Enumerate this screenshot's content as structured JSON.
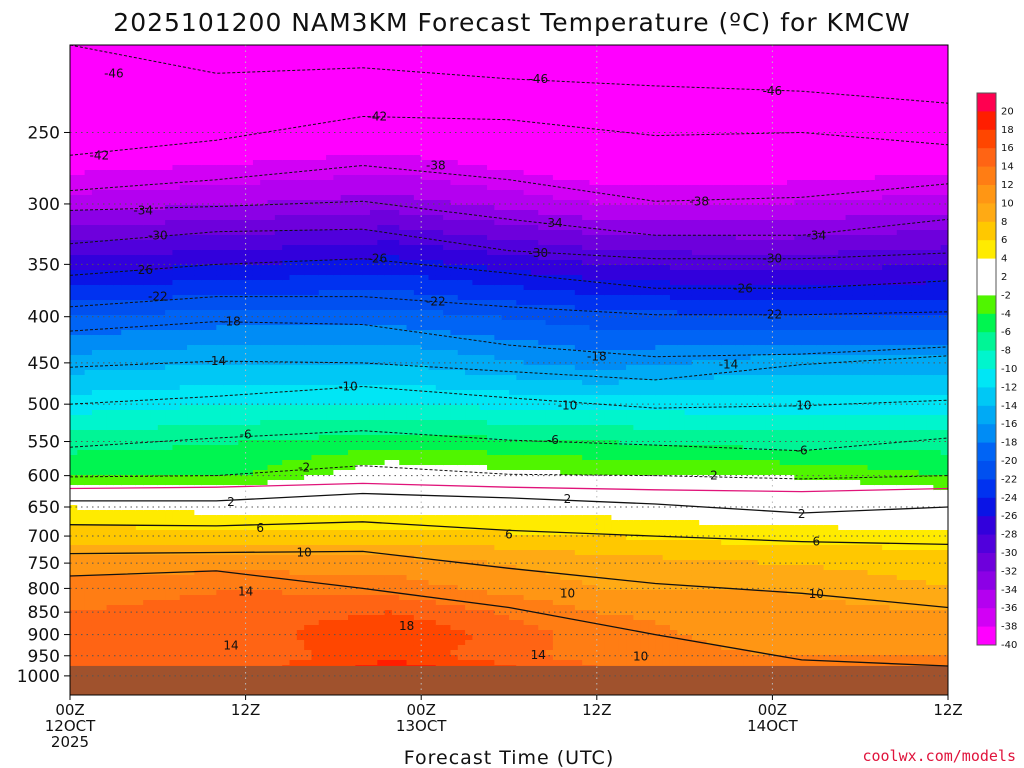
{
  "chart_data": {
    "type": "heatmap",
    "title": "2025101200 NAM3KM Forecast Temperature (ºC) for KMCW",
    "xlabel": "Forecast Time (UTC)",
    "credit": "coolwx.com/models",
    "x_ticks": [
      {
        "hour": 0,
        "lines": [
          "00Z",
          "12OCT",
          "2025"
        ]
      },
      {
        "hour": 12,
        "lines": [
          "12Z"
        ]
      },
      {
        "hour": 24,
        "lines": [
          "00Z",
          "13OCT"
        ]
      },
      {
        "hour": 36,
        "lines": [
          "12Z"
        ]
      },
      {
        "hour": 48,
        "lines": [
          "00Z",
          "14OCT"
        ]
      },
      {
        "hour": 60,
        "lines": [
          "12Z"
        ]
      }
    ],
    "xlim": [
      0,
      60
    ],
    "ylim": [
      1050,
      200
    ],
    "y_ticks": [
      250,
      300,
      350,
      400,
      450,
      500,
      550,
      600,
      650,
      700,
      750,
      800,
      850,
      900,
      950,
      1000
    ],
    "ground_level_hpa": 975,
    "colorbar_labels": [
      "20",
      "18",
      "16",
      "14",
      "12",
      "10",
      "8",
      "6",
      "4",
      "2",
      "-2",
      "-4",
      "-6",
      "-8",
      "-10",
      "-12",
      "-14",
      "-16",
      "-18",
      "-20",
      "-22",
      "-24",
      "-26",
      "-28",
      "-30",
      "-32",
      "-34",
      "-36",
      "-38",
      "-40"
    ],
    "colorbar_colors": [
      "#ff0050",
      "#ff1e00",
      "#ff4600",
      "#ff6414",
      "#ff7d14",
      "#ff9614",
      "#ffaa14",
      "#ffc800",
      "#ffeb00",
      "#ffffff",
      "#ffffff",
      "#50f500",
      "#00f550",
      "#00f596",
      "#00f5cd",
      "#00e6f5",
      "#00c8f5",
      "#00aaf5",
      "#008cf5",
      "#0064f5",
      "#0050f0",
      "#0032f0",
      "#0a14e6",
      "#3200dc",
      "#5000dc",
      "#6e00dc",
      "#8c00e6",
      "#b400f0",
      "#d200f5",
      "#ff00ff"
    ],
    "temperature_profiles": [
      {
        "hour": 0,
        "levels": [
          {
            "p": 975,
            "t": 16
          },
          {
            "p": 950,
            "t": 15
          },
          {
            "p": 900,
            "t": 14
          },
          {
            "p": 850,
            "t": 14
          },
          {
            "p": 800,
            "t": 13
          },
          {
            "p": 750,
            "t": 11
          },
          {
            "p": 700,
            "t": 7
          },
          {
            "p": 650,
            "t": 4
          },
          {
            "p": 600,
            "t": -4
          },
          {
            "p": 550,
            "t": -7
          },
          {
            "p": 500,
            "t": -11
          },
          {
            "p": 450,
            "t": -15
          },
          {
            "p": 400,
            "t": -20
          },
          {
            "p": 350,
            "t": -27
          },
          {
            "p": 300,
            "t": -35
          },
          {
            "p": 250,
            "t": -42
          },
          {
            "p": 200,
            "t": -48
          }
        ]
      },
      {
        "hour": 12,
        "levels": [
          {
            "p": 975,
            "t": 15
          },
          {
            "p": 950,
            "t": 15
          },
          {
            "p": 900,
            "t": 15
          },
          {
            "p": 850,
            "t": 15
          },
          {
            "p": 800,
            "t": 14
          },
          {
            "p": 750,
            "t": 11
          },
          {
            "p": 700,
            "t": 7
          },
          {
            "p": 650,
            "t": 3
          },
          {
            "p": 600,
            "t": -4
          },
          {
            "p": 550,
            "t": -6
          },
          {
            "p": 500,
            "t": -10
          },
          {
            "p": 450,
            "t": -14
          },
          {
            "p": 400,
            "t": -19
          },
          {
            "p": 350,
            "t": -26
          },
          {
            "p": 300,
            "t": -34
          },
          {
            "p": 250,
            "t": -41
          },
          {
            "p": 200,
            "t": -47
          }
        ]
      },
      {
        "hour": 22,
        "levels": [
          {
            "p": 975,
            "t": 19
          },
          {
            "p": 950,
            "t": 17
          },
          {
            "p": 900,
            "t": 18
          },
          {
            "p": 850,
            "t": 16
          },
          {
            "p": 800,
            "t": 13
          },
          {
            "p": 750,
            "t": 11
          },
          {
            "p": 700,
            "t": 7
          },
          {
            "p": 650,
            "t": 3
          },
          {
            "p": 600,
            "t": 0
          },
          {
            "p": 550,
            "t": -5
          },
          {
            "p": 500,
            "t": -10
          },
          {
            "p": 450,
            "t": -14
          },
          {
            "p": 400,
            "t": -19
          },
          {
            "p": 350,
            "t": -25
          },
          {
            "p": 300,
            "t": -33
          },
          {
            "p": 250,
            "t": -40
          },
          {
            "p": 200,
            "t": -46
          }
        ]
      },
      {
        "hour": 36,
        "levels": [
          {
            "p": 975,
            "t": 14
          },
          {
            "p": 950,
            "t": 13
          },
          {
            "p": 900,
            "t": 13
          },
          {
            "p": 850,
            "t": 12
          },
          {
            "p": 800,
            "t": 10
          },
          {
            "p": 750,
            "t": 9
          },
          {
            "p": 700,
            "t": 6
          },
          {
            "p": 650,
            "t": 3
          },
          {
            "p": 600,
            "t": -2
          },
          {
            "p": 550,
            "t": -6
          },
          {
            "p": 500,
            "t": -11
          },
          {
            "p": 450,
            "t": -17
          },
          {
            "p": 400,
            "t": -21
          },
          {
            "p": 350,
            "t": -28
          },
          {
            "p": 300,
            "t": -36
          },
          {
            "p": 250,
            "t": -43
          },
          {
            "p": 200,
            "t": -48
          }
        ]
      },
      {
        "hour": 48,
        "levels": [
          {
            "p": 975,
            "t": 12
          },
          {
            "p": 950,
            "t": 12
          },
          {
            "p": 900,
            "t": 11
          },
          {
            "p": 850,
            "t": 11
          },
          {
            "p": 800,
            "t": 10
          },
          {
            "p": 750,
            "t": 8
          },
          {
            "p": 700,
            "t": 5
          },
          {
            "p": 650,
            "t": 2
          },
          {
            "p": 600,
            "t": -2
          },
          {
            "p": 550,
            "t": -7
          },
          {
            "p": 500,
            "t": -11
          },
          {
            "p": 450,
            "t": -15
          },
          {
            "p": 400,
            "t": -22
          },
          {
            "p": 350,
            "t": -29
          },
          {
            "p": 300,
            "t": -36
          },
          {
            "p": 250,
            "t": -43
          },
          {
            "p": 200,
            "t": -48
          }
        ]
      },
      {
        "hour": 60,
        "levels": [
          {
            "p": 975,
            "t": 12
          },
          {
            "p": 950,
            "t": 12
          },
          {
            "p": 900,
            "t": 10
          },
          {
            "p": 850,
            "t": 10
          },
          {
            "p": 800,
            "t": 8
          },
          {
            "p": 750,
            "t": 7
          },
          {
            "p": 700,
            "t": 5
          },
          {
            "p": 650,
            "t": 1
          },
          {
            "p": 600,
            "t": -4
          },
          {
            "p": 550,
            "t": -7
          },
          {
            "p": 500,
            "t": -11
          },
          {
            "p": 450,
            "t": -15
          },
          {
            "p": 400,
            "t": -22
          },
          {
            "p": 350,
            "t": -28
          },
          {
            "p": 300,
            "t": -35
          },
          {
            "p": 250,
            "t": -42
          },
          {
            "p": 200,
            "t": -48
          }
        ]
      }
    ],
    "contour_labels": [
      {
        "text": "-46",
        "hour": 3,
        "p": 215
      },
      {
        "text": "-46",
        "hour": 32,
        "p": 218
      },
      {
        "text": "-46",
        "hour": 48,
        "p": 225
      },
      {
        "text": "-42",
        "hour": 2,
        "p": 265
      },
      {
        "text": "-42",
        "hour": 21,
        "p": 240
      },
      {
        "text": "-38",
        "hour": 25,
        "p": 272
      },
      {
        "text": "-38",
        "hour": 43,
        "p": 298
      },
      {
        "text": "-34",
        "hour": 5,
        "p": 305
      },
      {
        "text": "-34",
        "hour": 33,
        "p": 315
      },
      {
        "text": "-34",
        "hour": 51,
        "p": 325
      },
      {
        "text": "-30",
        "hour": 6,
        "p": 325
      },
      {
        "text": "-30",
        "hour": 32,
        "p": 340
      },
      {
        "text": "-30",
        "hour": 48,
        "p": 345
      },
      {
        "text": "-26",
        "hour": 5,
        "p": 355
      },
      {
        "text": "-26",
        "hour": 21,
        "p": 345
      },
      {
        "text": "-26",
        "hour": 46,
        "p": 372
      },
      {
        "text": "-22",
        "hour": 6,
        "p": 380
      },
      {
        "text": "-22",
        "hour": 25,
        "p": 385
      },
      {
        "text": "-22",
        "hour": 48,
        "p": 398
      },
      {
        "text": "-18",
        "hour": 11,
        "p": 405
      },
      {
        "text": "-18",
        "hour": 36,
        "p": 443
      },
      {
        "text": "-14",
        "hour": 10,
        "p": 448
      },
      {
        "text": "-14",
        "hour": 45,
        "p": 452
      },
      {
        "text": "-10",
        "hour": 19,
        "p": 478
      },
      {
        "text": "-10",
        "hour": 34,
        "p": 502
      },
      {
        "text": "-10",
        "hour": 50,
        "p": 502
      },
      {
        "text": "-6",
        "hour": 12,
        "p": 540
      },
      {
        "text": "-6",
        "hour": 33,
        "p": 548
      },
      {
        "text": "-6",
        "hour": 50,
        "p": 563
      },
      {
        "text": "-2",
        "hour": 16,
        "p": 588
      },
      {
        "text": "2",
        "hour": 44,
        "p": 600
      },
      {
        "text": "2",
        "hour": 11,
        "p": 642
      },
      {
        "text": "2",
        "hour": 34,
        "p": 637
      },
      {
        "text": "2",
        "hour": 50,
        "p": 662
      },
      {
        "text": "6",
        "hour": 13,
        "p": 686
      },
      {
        "text": "6",
        "hour": 30,
        "p": 697
      },
      {
        "text": "6",
        "hour": 51,
        "p": 710
      },
      {
        "text": "10",
        "hour": 16,
        "p": 730
      },
      {
        "text": "10",
        "hour": 34,
        "p": 810
      },
      {
        "text": "10",
        "hour": 51,
        "p": 812
      },
      {
        "text": "10",
        "hour": 39,
        "p": 952
      },
      {
        "text": "14",
        "hour": 12,
        "p": 806
      },
      {
        "text": "14",
        "hour": 11,
        "p": 925
      },
      {
        "text": "14",
        "hour": 32,
        "p": 948
      },
      {
        "text": "18",
        "hour": 23,
        "p": 880
      }
    ],
    "contours": [
      {
        "t": -46,
        "style": "dashed",
        "hours": [
          0,
          10,
          20,
          30,
          40,
          50,
          60
        ],
        "p": [
          200,
          215,
          212,
          218,
          222,
          225,
          232
        ]
      },
      {
        "t": -42,
        "style": "dashed",
        "hours": [
          0,
          10,
          20,
          30,
          40,
          50,
          60
        ],
        "p": [
          265,
          255,
          240,
          242,
          252,
          250,
          258
        ]
      },
      {
        "t": -38,
        "style": "dashed",
        "hours": [
          0,
          10,
          20,
          30,
          40,
          50,
          60
        ],
        "p": [
          290,
          282,
          272,
          282,
          298,
          295,
          285
        ]
      },
      {
        "t": -34,
        "style": "dashed",
        "hours": [
          0,
          10,
          20,
          30,
          40,
          50,
          60
        ],
        "p": [
          305,
          302,
          298,
          312,
          325,
          325,
          312
        ]
      },
      {
        "t": -30,
        "style": "dashed",
        "hours": [
          0,
          10,
          20,
          30,
          40,
          50,
          60
        ],
        "p": [
          332,
          322,
          320,
          338,
          345,
          345,
          340
        ]
      },
      {
        "t": -26,
        "style": "dashed",
        "hours": [
          0,
          10,
          20,
          30,
          40,
          50,
          60
        ],
        "p": [
          360,
          350,
          345,
          358,
          372,
          372,
          365
        ]
      },
      {
        "t": -22,
        "style": "dashed",
        "hours": [
          0,
          10,
          20,
          30,
          40,
          50,
          60
        ],
        "p": [
          390,
          380,
          380,
          390,
          398,
          398,
          395
        ]
      },
      {
        "t": -18,
        "style": "dashed",
        "hours": [
          0,
          10,
          20,
          30,
          40,
          50,
          60
        ],
        "p": [
          415,
          405,
          408,
          430,
          443,
          440,
          432
        ]
      },
      {
        "t": -14,
        "style": "dashed",
        "hours": [
          0,
          10,
          20,
          30,
          40,
          50,
          60
        ],
        "p": [
          455,
          448,
          450,
          460,
          470,
          452,
          442
        ]
      },
      {
        "t": -10,
        "style": "dashed",
        "hours": [
          0,
          10,
          20,
          30,
          40,
          50,
          60
        ],
        "p": [
          500,
          490,
          478,
          492,
          505,
          502,
          495
        ]
      },
      {
        "t": -6,
        "style": "dashed",
        "hours": [
          0,
          10,
          20,
          30,
          40,
          50,
          60
        ],
        "p": [
          558,
          545,
          535,
          548,
          555,
          563,
          545
        ]
      },
      {
        "t": -2,
        "style": "dashed",
        "hours": [
          0,
          10,
          20,
          30,
          40,
          50,
          60
        ],
        "p": [
          602,
          600,
          585,
          598,
          600,
          605,
          600
        ]
      },
      {
        "t": 0,
        "style": "magenta",
        "hours": [
          0,
          10,
          20,
          30,
          40,
          50,
          60
        ],
        "p": [
          620,
          618,
          612,
          618,
          622,
          625,
          620
        ]
      },
      {
        "t": 2,
        "style": "solid",
        "hours": [
          0,
          10,
          20,
          30,
          40,
          50,
          60
        ],
        "p": [
          640,
          640,
          628,
          635,
          645,
          660,
          650
        ]
      },
      {
        "t": 6,
        "style": "solid",
        "hours": [
          0,
          10,
          20,
          30,
          40,
          50,
          60
        ],
        "p": [
          680,
          682,
          675,
          690,
          700,
          710,
          715
        ]
      },
      {
        "t": 10,
        "style": "solid",
        "hours": [
          0,
          10,
          20,
          30,
          40,
          50,
          60
        ],
        "p": [
          732,
          730,
          728,
          760,
          790,
          810,
          840
        ]
      },
      {
        "t": 14,
        "style": "solid",
        "hours": [
          0,
          10,
          20,
          30,
          40,
          50,
          60
        ],
        "p": [
          775,
          765,
          800,
          840,
          900,
          960,
          975
        ]
      }
    ]
  }
}
